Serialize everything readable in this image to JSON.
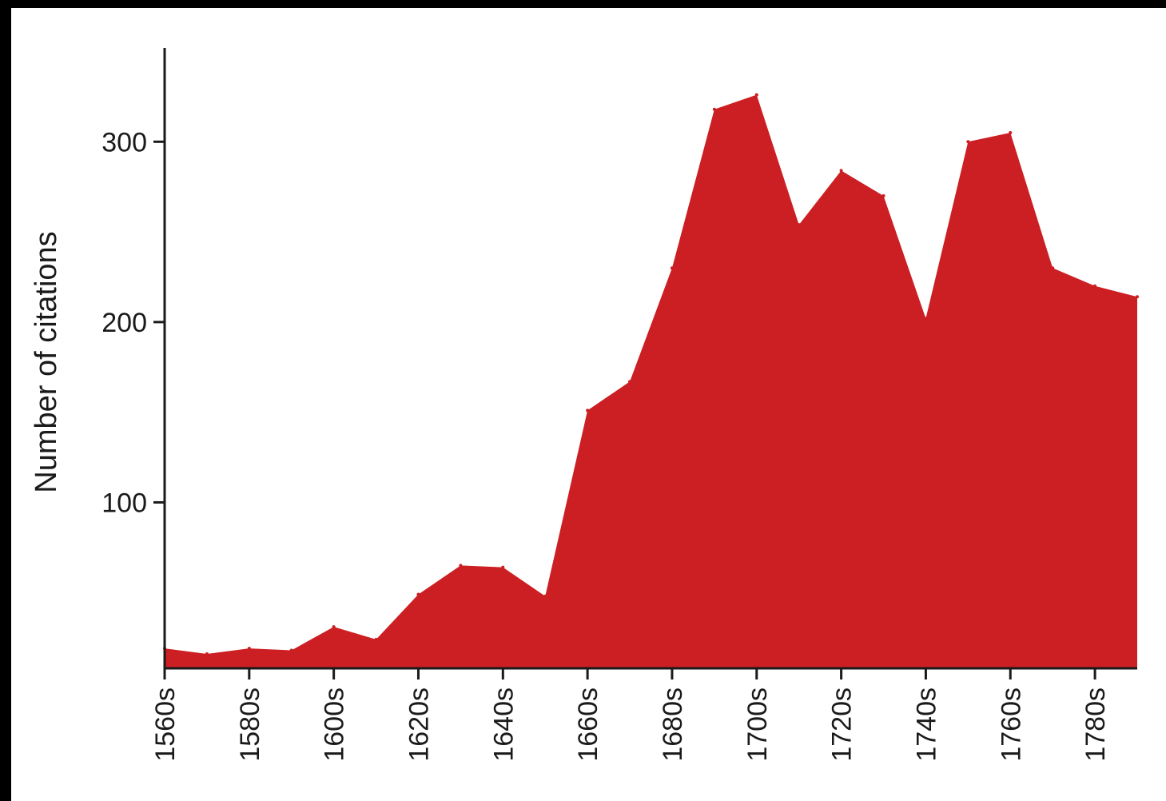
{
  "chart_data": {
    "type": "area",
    "title": "",
    "xlabel": "",
    "ylabel": "Number of citations",
    "x": [
      "1560s",
      "1570s",
      "1580s",
      "1590s",
      "1600s",
      "1610s",
      "1620s",
      "1630s",
      "1640s",
      "1650s",
      "1660s",
      "1670s",
      "1680s",
      "1690s",
      "1700s",
      "1710s",
      "1720s",
      "1730s",
      "1740s",
      "1750s",
      "1760s",
      "1770s",
      "1780s",
      "1790s"
    ],
    "x_tick_labels": [
      "1560s",
      "1580s",
      "1600s",
      "1620s",
      "1640s",
      "1660s",
      "1680s",
      "1700s",
      "1720s",
      "1740s",
      "1760s",
      "1780s"
    ],
    "values": [
      19,
      16,
      19,
      18,
      31,
      24,
      49,
      65,
      64,
      48,
      151,
      167,
      230,
      318,
      326,
      254,
      284,
      270,
      202,
      300,
      305,
      230,
      220,
      214
    ],
    "y_ticks": [
      100,
      200,
      300
    ],
    "ylim": [
      8,
      352
    ],
    "grid": false,
    "legend": "none",
    "fill_color": "#cc1f23",
    "axis_color": "#1a1a1a"
  }
}
